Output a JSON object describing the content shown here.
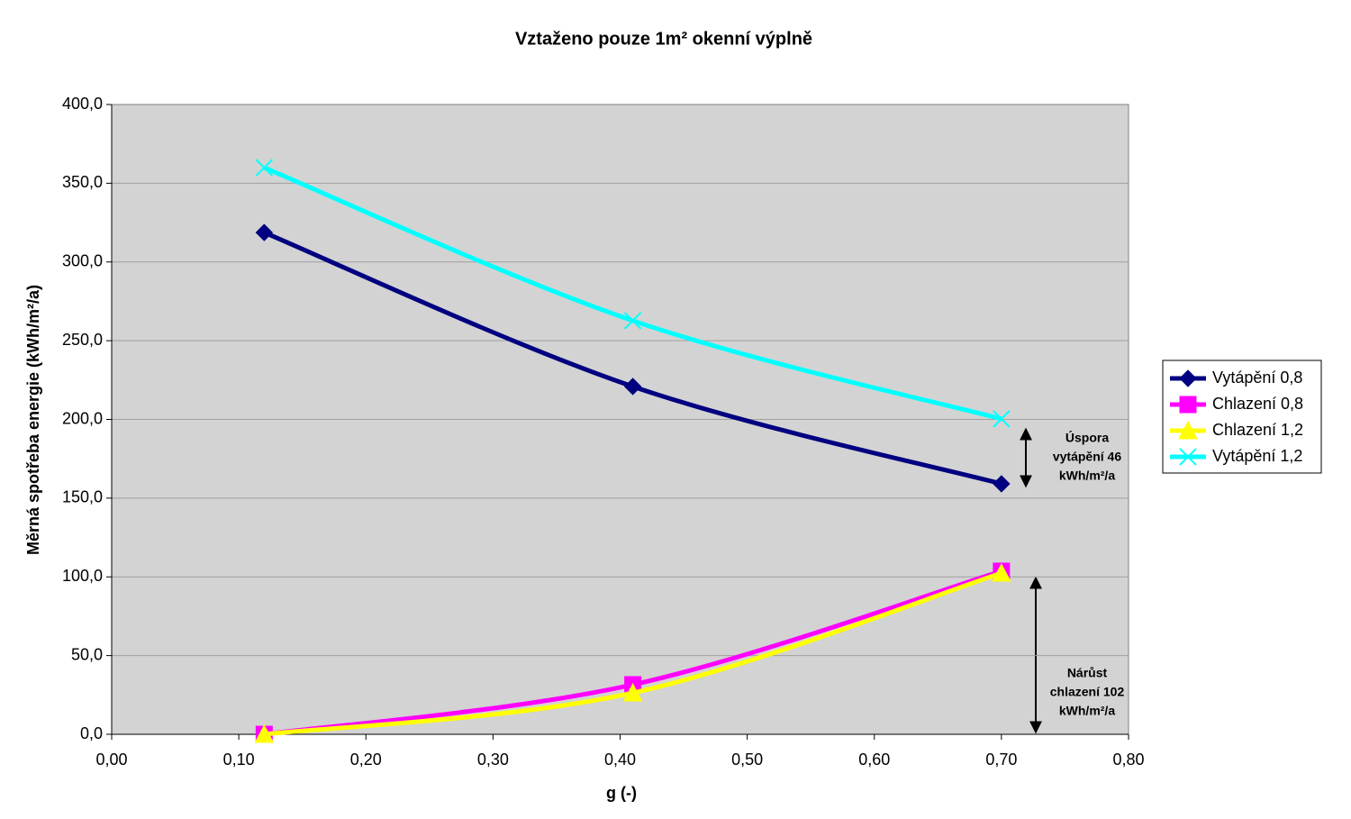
{
  "chart_data": {
    "type": "line",
    "title": "Vztaženo pouze 1m² okenní výplně",
    "x_label": "g (-)",
    "y_label": "Měrná spotřeba energie (kWh/m²/a)",
    "x": [
      0.12,
      0.41,
      0.7
    ],
    "series": [
      {
        "name": "Vytápění 0,8",
        "color": "#000080",
        "marker": "diamond",
        "values": [
          318.7,
          220.9,
          159.1
        ]
      },
      {
        "name": "Chlazení 0,8",
        "color": "#ff00ff",
        "marker": "square",
        "values": [
          0,
          31.5,
          103.6
        ]
      },
      {
        "name": "Chlazení 1,2",
        "color": "#ffff00",
        "marker": "triangle",
        "values": [
          0,
          26.3,
          102.4
        ]
      },
      {
        "name": "Vytápění 1,2",
        "color": "#00ffff",
        "marker": "x",
        "values": [
          359.9,
          262.7,
          200.3
        ]
      }
    ],
    "xlim": [
      0,
      0.8
    ],
    "xticks": [
      {
        "value": 0,
        "label": "0,00"
      },
      {
        "value": 0.1,
        "label": "0,10"
      },
      {
        "value": 0.2,
        "label": "0,20"
      },
      {
        "value": 0.3,
        "label": "0,30"
      },
      {
        "value": 0.4,
        "label": "0,40"
      },
      {
        "value": 0.5,
        "label": "0,50"
      },
      {
        "value": 0.6,
        "label": "0,60"
      },
      {
        "value": 0.7,
        "label": "0,70"
      },
      {
        "value": 0.8,
        "label": "0,80"
      }
    ],
    "ylim": [
      0,
      400
    ],
    "yticks": [
      {
        "value": 0,
        "label": "0,0"
      },
      {
        "value": 50,
        "label": "50,0"
      },
      {
        "value": 100,
        "label": "100,0"
      },
      {
        "value": 150,
        "label": "150,0"
      },
      {
        "value": 200,
        "label": "200,0"
      },
      {
        "value": 250,
        "label": "250,0"
      },
      {
        "value": 300,
        "label": "300,0"
      },
      {
        "value": 350,
        "label": "350,0"
      },
      {
        "value": 400,
        "label": "400,0"
      }
    ],
    "grid": true,
    "legend": "right",
    "annotations": [
      {
        "lines": [
          "Úspora",
          "vytápění 46",
          "kWh/m²/a"
        ]
      },
      {
        "lines": [
          "Nárůst",
          "chlazení 102",
          "kWh/m²/a"
        ]
      }
    ]
  }
}
